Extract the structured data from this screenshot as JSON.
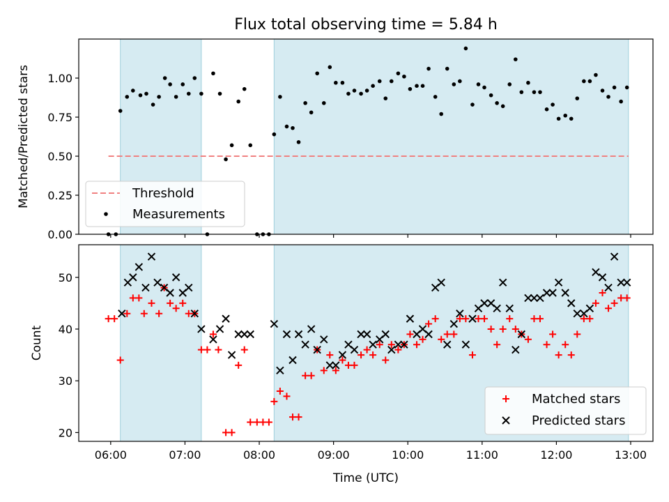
{
  "chart_data": [
    {
      "type": "scatter",
      "title": "Flux total observing time = 5.84 h",
      "xlabel": "",
      "ylabel": "Matched/Predicted stars",
      "ylim": [
        0,
        1.25
      ],
      "yticks": [
        "0.00",
        "0.25",
        "0.50",
        "0.75",
        "1.00"
      ],
      "legend_position": "lower-left",
      "shaded_intervals_hours": [
        [
          6.13,
          7.22
        ],
        [
          8.2,
          12.97
        ]
      ],
      "threshold": {
        "name": "Threshold",
        "value": 0.5,
        "x_range": [
          5.97,
          12.97
        ],
        "color": "#f08080"
      },
      "series": [
        {
          "name": "Measurements",
          "color": "#000000",
          "x": [
            5.97,
            6.07,
            6.13,
            6.22,
            6.3,
            6.4,
            6.48,
            6.57,
            6.65,
            6.73,
            6.8,
            6.88,
            6.97,
            7.05,
            7.13,
            7.22,
            7.3,
            7.38,
            7.47,
            7.55,
            7.63,
            7.72,
            7.8,
            7.88,
            7.97,
            8.05,
            8.13,
            8.2,
            8.28,
            8.37,
            8.45,
            8.53,
            8.62,
            8.7,
            8.78,
            8.87,
            8.95,
            9.03,
            9.12,
            9.2,
            9.28,
            9.37,
            9.45,
            9.53,
            9.62,
            9.7,
            9.78,
            9.87,
            9.95,
            10.03,
            10.12,
            10.2,
            10.28,
            10.37,
            10.45,
            10.53,
            10.62,
            10.7,
            10.78,
            10.87,
            10.95,
            11.03,
            11.12,
            11.2,
            11.28,
            11.37,
            11.45,
            11.53,
            11.62,
            11.7,
            11.78,
            11.87,
            11.95,
            12.03,
            12.12,
            12.2,
            12.28,
            12.37,
            12.45,
            12.53,
            12.62,
            12.7,
            12.78,
            12.87,
            12.95
          ],
          "y": [
            0.0,
            0.0,
            0.79,
            0.88,
            0.92,
            0.89,
            0.9,
            0.83,
            0.88,
            1.0,
            0.96,
            0.88,
            0.96,
            0.9,
            1.0,
            0.9,
            0.0,
            1.03,
            0.9,
            0.48,
            0.57,
            0.85,
            0.93,
            0.57,
            0.0,
            0.0,
            0.0,
            0.64,
            0.88,
            0.69,
            0.68,
            0.59,
            0.84,
            0.78,
            1.03,
            0.84,
            1.07,
            0.97,
            0.97,
            0.9,
            0.92,
            0.9,
            0.92,
            0.95,
            0.98,
            0.87,
            0.98,
            1.03,
            1.01,
            0.93,
            0.95,
            0.95,
            1.06,
            0.88,
            0.77,
            1.06,
            0.96,
            0.98,
            1.19,
            0.83,
            0.96,
            0.94,
            0.89,
            0.84,
            0.82,
            0.96,
            1.12,
            0.91,
            0.97,
            0.91,
            0.91,
            0.8,
            0.83,
            0.74,
            0.76,
            0.74,
            0.87,
            0.98,
            0.98,
            1.02,
            0.92,
            0.88,
            0.94,
            0.85,
            0.94
          ]
        }
      ]
    },
    {
      "type": "scatter",
      "title": "",
      "xlabel": "Time (UTC)",
      "ylabel": "Count",
      "ylim": [
        18.3,
        56.3
      ],
      "xlim": [
        5.57,
        13.3
      ],
      "yticks": [
        "20",
        "30",
        "40",
        "50"
      ],
      "xticks": [
        "06:00",
        "07:00",
        "08:00",
        "09:00",
        "10:00",
        "11:00",
        "12:00",
        "13:00"
      ],
      "legend_position": "lower-right",
      "series": [
        {
          "name": "Matched stars",
          "marker": "+",
          "color": "#ff0000",
          "x": [
            5.97,
            6.05,
            6.13,
            6.22,
            6.3,
            6.38,
            6.45,
            6.55,
            6.65,
            6.72,
            6.8,
            6.88,
            6.97,
            7.05,
            7.13,
            7.22,
            7.3,
            7.38,
            7.45,
            7.55,
            7.63,
            7.72,
            7.8,
            7.88,
            7.97,
            8.05,
            8.13,
            8.2,
            8.28,
            8.37,
            8.45,
            8.53,
            8.62,
            8.7,
            8.78,
            8.87,
            8.95,
            9.03,
            9.12,
            9.2,
            9.28,
            9.37,
            9.45,
            9.53,
            9.62,
            9.7,
            9.78,
            9.87,
            9.95,
            10.03,
            10.12,
            10.2,
            10.28,
            10.37,
            10.45,
            10.53,
            10.62,
            10.7,
            10.78,
            10.87,
            10.95,
            11.03,
            11.12,
            11.2,
            11.28,
            11.37,
            11.45,
            11.53,
            11.62,
            11.7,
            11.78,
            11.87,
            11.95,
            12.03,
            12.12,
            12.2,
            12.28,
            12.37,
            12.45,
            12.53,
            12.62,
            12.7,
            12.78,
            12.87,
            12.95
          ],
          "y": [
            42,
            42,
            34,
            43,
            46,
            46,
            43,
            45,
            43,
            48,
            45,
            44,
            45,
            43,
            43,
            36,
            36,
            39,
            36,
            20,
            20,
            33,
            36,
            22,
            22,
            22,
            22,
            26,
            28,
            27,
            23,
            23,
            31,
            31,
            36,
            32,
            35,
            32,
            34,
            33,
            33,
            35,
            36,
            35,
            37,
            34,
            37,
            36,
            37,
            39,
            37,
            38,
            41,
            42,
            38,
            39,
            39,
            42,
            42,
            35,
            42,
            42,
            40,
            37,
            40,
            42,
            40,
            39,
            38,
            42,
            42,
            37,
            39,
            35,
            37,
            35,
            39,
            42,
            42,
            45,
            47,
            44,
            45,
            46,
            46
          ]
        },
        {
          "name": "Predicted stars",
          "marker": "x",
          "color": "#000000",
          "x": [
            6.15,
            6.23,
            6.3,
            6.38,
            6.47,
            6.55,
            6.63,
            6.72,
            6.8,
            6.88,
            6.97,
            7.05,
            7.13,
            7.22,
            7.38,
            7.47,
            7.55,
            7.63,
            7.72,
            7.8,
            7.88,
            8.2,
            8.28,
            8.37,
            8.45,
            8.53,
            8.62,
            8.7,
            8.78,
            8.87,
            8.95,
            9.03,
            9.12,
            9.2,
            9.28,
            9.37,
            9.45,
            9.53,
            9.62,
            9.7,
            9.78,
            9.87,
            9.95,
            10.03,
            10.12,
            10.2,
            10.28,
            10.37,
            10.45,
            10.53,
            10.62,
            10.7,
            10.78,
            10.87,
            10.95,
            11.03,
            11.12,
            11.2,
            11.28,
            11.37,
            11.45,
            11.53,
            11.62,
            11.7,
            11.78,
            11.87,
            11.95,
            12.03,
            12.12,
            12.2,
            12.28,
            12.37,
            12.45,
            12.53,
            12.62,
            12.7,
            12.78,
            12.87,
            12.95
          ],
          "y": [
            43,
            49,
            50,
            52,
            48,
            54,
            49,
            48,
            47,
            50,
            47,
            48,
            43,
            40,
            38,
            40,
            42,
            35,
            39,
            39,
            39,
            41,
            32,
            39,
            34,
            39,
            37,
            40,
            36,
            38,
            33,
            33,
            35,
            37,
            36,
            39,
            39,
            37,
            38,
            39,
            36,
            37,
            37,
            42,
            39,
            40,
            39,
            48,
            49,
            37,
            41,
            43,
            37,
            42,
            44,
            45,
            45,
            44,
            49,
            44,
            36,
            39,
            46,
            46,
            46,
            47,
            47,
            49,
            47,
            45,
            43,
            43,
            44,
            51,
            50,
            48,
            54,
            49,
            49
          ]
        }
      ]
    }
  ]
}
